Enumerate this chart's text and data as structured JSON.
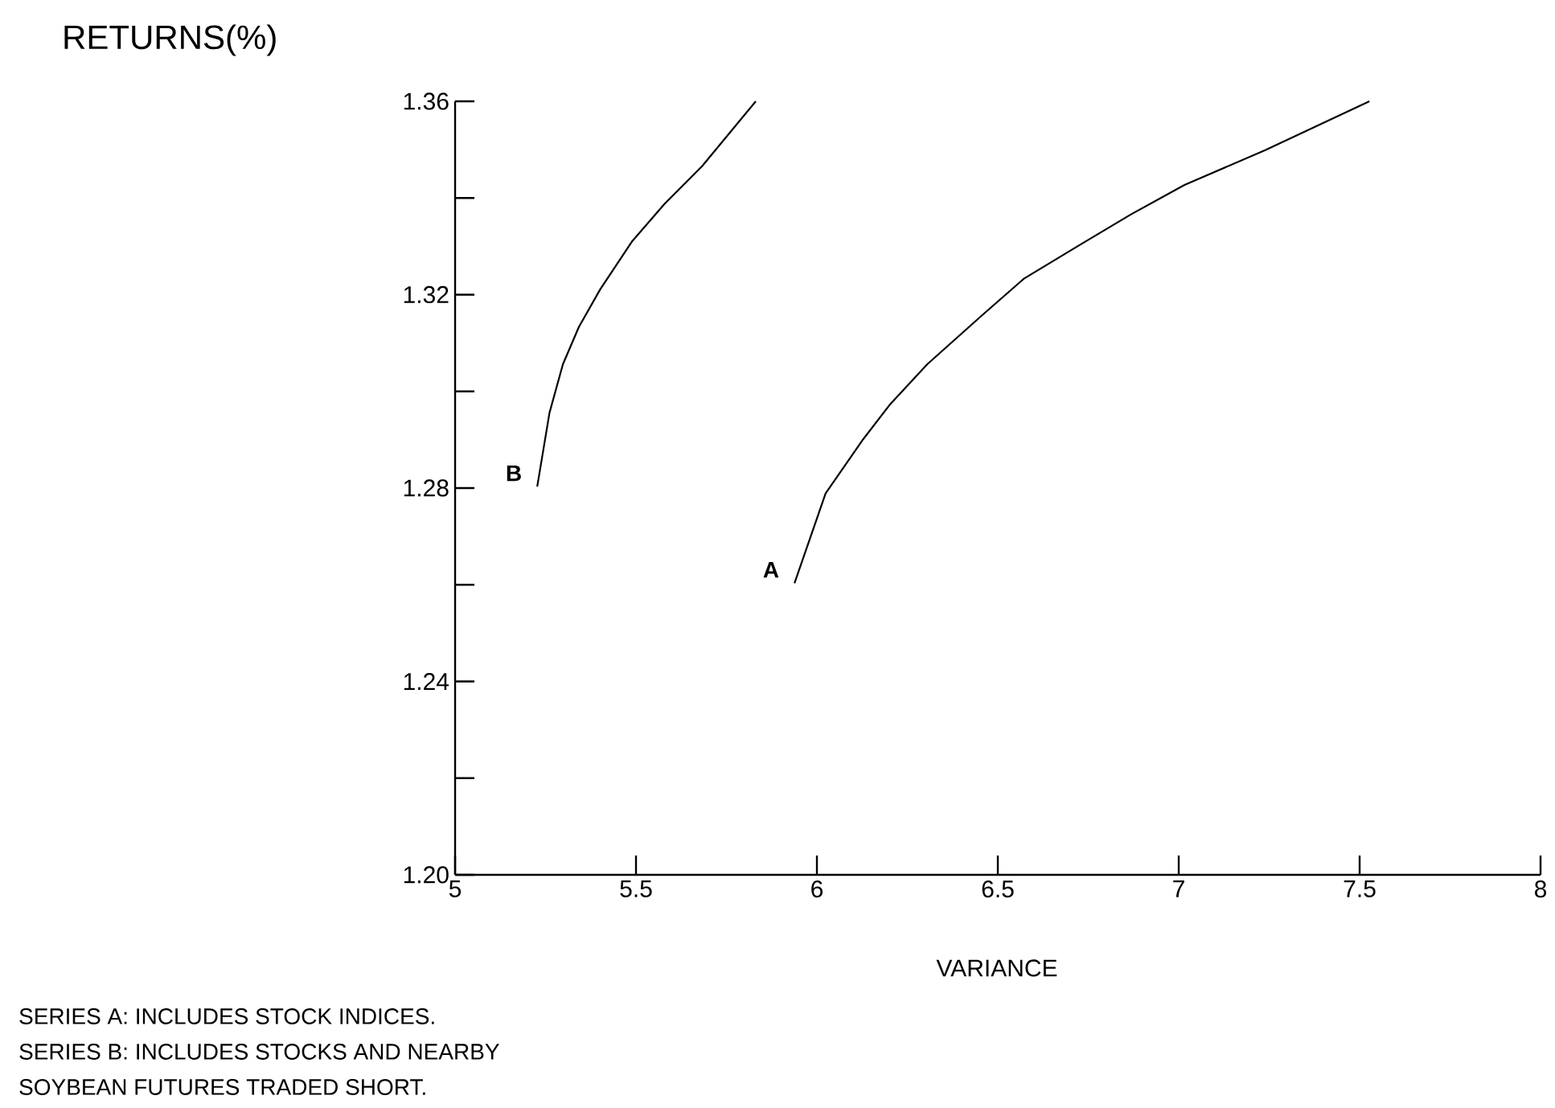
{
  "chart_data": {
    "type": "line",
    "ylabel": "RETURNS(%)",
    "xlabel": "VARIANCE",
    "xlim": [
      5,
      8
    ],
    "ylim": [
      1.2,
      1.36
    ],
    "xticks": [
      5,
      5.5,
      6,
      6.5,
      7,
      7.5,
      8
    ],
    "yticks": [
      {
        "value": 1.2,
        "label": "1.20"
      },
      {
        "value": 1.22,
        "label": null
      },
      1.24,
      {
        "value": 1.26,
        "label": null
      },
      1.28,
      {
        "value": 1.3,
        "label": null
      },
      1.32,
      {
        "value": 1.34,
        "label": null
      },
      1.36
    ],
    "grid": false,
    "legend": false,
    "marker": "none",
    "line_style": "solid",
    "series": [
      {
        "name": "A",
        "color": "#000000",
        "x": [
          5.938,
          6.024,
          6.128,
          6.201,
          6.305,
          6.453,
          6.572,
          6.72,
          6.868,
          7.016,
          7.239,
          7.527
        ],
        "values": [
          1.2603,
          1.2789,
          1.2901,
          1.2972,
          1.3056,
          1.3155,
          1.3233,
          1.33,
          1.3366,
          1.3427,
          1.3499,
          1.36
        ]
      },
      {
        "name": "B",
        "color": "#000000",
        "x": [
          5.227,
          5.261,
          5.298,
          5.342,
          5.401,
          5.49,
          5.579,
          5.683,
          5.831
        ],
        "values": [
          1.2803,
          1.2956,
          1.3056,
          1.3133,
          1.3211,
          1.3311,
          1.3388,
          1.3466,
          1.36
        ]
      }
    ],
    "annotations": [
      "SERIES A: INCLUDES STOCK INDICES.",
      "SERIES B: INCLUDES STOCKS AND NEARBY",
      "SOYBEAN FUTURES TRADED SHORT."
    ]
  }
}
